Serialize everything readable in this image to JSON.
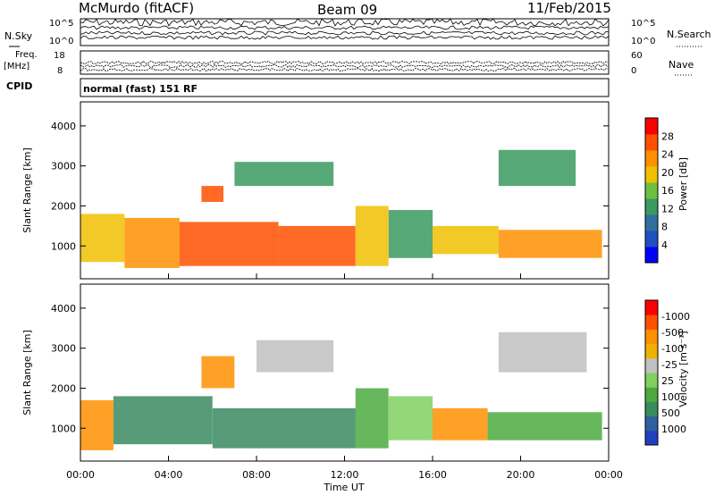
{
  "header": {
    "site": "McMurdo (fitACF)",
    "beam": "Beam 09",
    "date": "11/Feb/2015"
  },
  "strip_noise": {
    "left_label": "N.Sky",
    "right_label": "N.Search",
    "left_ticks": [
      "10^5",
      "10^0"
    ],
    "right_ticks": [
      "10^5",
      "10^0"
    ]
  },
  "strip_freq": {
    "left_label_line1": "Freq.",
    "left_label_line2": "[MHz]",
    "right_label": "Nave",
    "left_ticks": [
      "18",
      "8"
    ],
    "right_ticks": [
      "60",
      "0"
    ]
  },
  "cpid": {
    "label": "CPID",
    "text": "normal (fast) 151 RF"
  },
  "time_axis": {
    "label": "Time UT",
    "ticks": [
      "00:00",
      "04:00",
      "08:00",
      "12:00",
      "16:00",
      "20:00",
      "00:00"
    ]
  },
  "chart_data": [
    {
      "type": "heatmap",
      "title": "",
      "xlabel": "Time UT",
      "ylabel": "Slant Range [km]",
      "xlim": [
        0,
        24
      ],
      "ylim": [
        180,
        4600
      ],
      "y_ticks": [
        1000,
        2000,
        3000,
        4000
      ],
      "colorbar": {
        "label": "Power [dB]",
        "ticks": [
          "4",
          "8",
          "12",
          "16",
          "20",
          "24",
          "28"
        ],
        "colors": [
          "#0000ff",
          "#2050c0",
          "#3070a0",
          "#3a9a60",
          "#6cc040",
          "#f0c000",
          "#ff9000",
          "#ff5000",
          "#ff0000"
        ]
      },
      "bands": [
        {
          "time": [
            0.0,
            2.0
          ],
          "range": [
            600,
            1800
          ],
          "level": 5
        },
        {
          "time": [
            2.0,
            4.5
          ],
          "range": [
            450,
            1700
          ],
          "level": 6
        },
        {
          "time": [
            4.5,
            9.0
          ],
          "range": [
            500,
            1600
          ],
          "level": 7
        },
        {
          "time": [
            9.0,
            12.5
          ],
          "range": [
            500,
            1500
          ],
          "level": 7
        },
        {
          "time": [
            12.5,
            14.0
          ],
          "range": [
            500,
            2000
          ],
          "level": 5
        },
        {
          "time": [
            14.0,
            16.0
          ],
          "range": [
            700,
            1900
          ],
          "level": 3
        },
        {
          "time": [
            16.0,
            19.0
          ],
          "range": [
            800,
            1500
          ],
          "level": 5
        },
        {
          "time": [
            19.0,
            23.7
          ],
          "range": [
            700,
            1400
          ],
          "level": 6
        },
        {
          "time": [
            5.5,
            6.5
          ],
          "range": [
            2100,
            2500
          ],
          "level": 7
        },
        {
          "time": [
            7.0,
            11.5
          ],
          "range": [
            2500,
            3100
          ],
          "level": 3
        },
        {
          "time": [
            19.0,
            22.5
          ],
          "range": [
            2500,
            3400
          ],
          "level": 3
        }
      ]
    },
    {
      "type": "heatmap",
      "title": "",
      "xlabel": "Time UT",
      "ylabel": "Slant Range [km]",
      "xlim": [
        0,
        24
      ],
      "ylim": [
        180,
        4600
      ],
      "y_ticks": [
        1000,
        2000,
        3000,
        4000
      ],
      "colorbar": {
        "label": "Velocity [m s⁻¹]",
        "ticks": [
          "1000",
          "500",
          "100",
          "25",
          "-25",
          "-100",
          "-500",
          "-1000"
        ],
        "colors": [
          "#2040c0",
          "#3060a0",
          "#3a8a60",
          "#4caa40",
          "#80d060",
          "#c0c0c0",
          "#f0b000",
          "#ff9000",
          "#ff5000",
          "#ff0000"
        ]
      },
      "bands": [
        {
          "time": [
            0.0,
            1.5
          ],
          "range": [
            450,
            1700
          ],
          "level": 7
        },
        {
          "time": [
            1.5,
            6.0
          ],
          "range": [
            600,
            1800
          ],
          "level": 2
        },
        {
          "time": [
            6.0,
            12.5
          ],
          "range": [
            500,
            1500
          ],
          "level": 2
        },
        {
          "time": [
            12.5,
            14.0
          ],
          "range": [
            500,
            2000
          ],
          "level": 3
        },
        {
          "time": [
            14.0,
            16.0
          ],
          "range": [
            700,
            1800
          ],
          "level": 4
        },
        {
          "time": [
            16.0,
            18.5
          ],
          "range": [
            700,
            1500
          ],
          "level": 7
        },
        {
          "time": [
            18.5,
            23.7
          ],
          "range": [
            700,
            1400
          ],
          "level": 3
        },
        {
          "time": [
            5.5,
            7.0
          ],
          "range": [
            2000,
            2800
          ],
          "level": 7
        },
        {
          "time": [
            8.0,
            11.5
          ],
          "range": [
            2400,
            3200
          ],
          "level": 5
        },
        {
          "time": [
            19.0,
            23.0
          ],
          "range": [
            2400,
            3400
          ],
          "level": 5
        }
      ]
    }
  ]
}
